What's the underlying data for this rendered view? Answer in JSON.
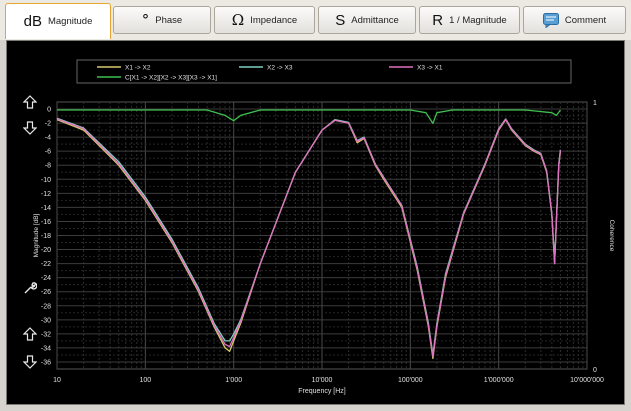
{
  "tabs": [
    {
      "symbol": "dB",
      "label": "Magnitude",
      "icon": "db-icon",
      "active": true
    },
    {
      "symbol": "°",
      "label": "Phase",
      "icon": "degree-icon",
      "active": false
    },
    {
      "symbol": "Ω",
      "label": "Impedance",
      "icon": "omega-icon",
      "active": false
    },
    {
      "symbol": "S",
      "label": "Admittance",
      "icon": "s-icon",
      "active": false
    },
    {
      "symbol": "R",
      "label": "1 / Magnitude",
      "icon": "r-icon",
      "active": false
    },
    {
      "symbol": "",
      "label": "Comment",
      "icon": "comment-icon",
      "active": false
    }
  ],
  "colors": {
    "background": "#000000",
    "grid": "#3a3a3a",
    "axis_text": "#e0e0e0",
    "accent": "#e8a531"
  },
  "chart_data": {
    "type": "line",
    "xlabel": "Frequency [Hz]",
    "ylabel": "Magnitude [dB]",
    "y2label": "Coherence",
    "xscale": "log",
    "xlim": [
      10,
      10000000
    ],
    "ylim": [
      -37,
      1
    ],
    "y2lim": [
      0,
      1
    ],
    "grid": true,
    "legend_position": "top",
    "x_tick_labels": [
      "10",
      "100",
      "1'000",
      "10'000",
      "100'000",
      "1'000'000",
      "10'000'000"
    ],
    "y_tick_labels": [
      "0",
      "-2",
      "-4",
      "-6",
      "-8",
      "-10",
      "-12",
      "-14",
      "-16",
      "-18",
      "-20",
      "-22",
      "-24",
      "-26",
      "-28",
      "-30",
      "-32",
      "-34",
      "-36"
    ],
    "y2_tick_labels": [
      "1",
      "0"
    ],
    "series": [
      {
        "name": "X1 -> X2",
        "color": "#d8c86a",
        "axis": "left",
        "x": [
          10,
          20,
          50,
          100,
          200,
          400,
          600,
          800,
          900,
          1000,
          1200,
          2000,
          5000,
          10000,
          14000,
          20000,
          25000,
          30000,
          40000,
          50000,
          80000,
          120000,
          160000,
          180000,
          200000,
          250000,
          400000,
          700000,
          1000000,
          1200000,
          1400000,
          2000000,
          2500000,
          3000000,
          3500000,
          4000000,
          4300000,
          4500000,
          4800000,
          5000000
        ],
        "y": [
          -1.5,
          -3,
          -8,
          -13,
          -19,
          -26,
          -31,
          -34,
          -34.5,
          -33,
          -30.5,
          -22,
          -9,
          -3,
          -1.6,
          -2,
          -4.8,
          -4.2,
          -8,
          -10,
          -14,
          -23,
          -31,
          -35.5,
          -31,
          -24,
          -15,
          -8,
          -3,
          -1.5,
          -3,
          -5.2,
          -6,
          -6.5,
          -9,
          -15,
          -22,
          -16,
          -8,
          -6
        ]
      },
      {
        "name": "X2 -> X3",
        "color": "#7fd0c0",
        "axis": "left",
        "x": [
          10,
          20,
          50,
          100,
          200,
          400,
          600,
          800,
          900,
          1000,
          1200,
          2000,
          5000,
          10000,
          14000,
          20000,
          25000,
          30000,
          40000,
          50000,
          80000,
          120000,
          160000,
          180000,
          200000,
          250000,
          400000,
          700000,
          1000000,
          1200000,
          1400000,
          2000000,
          2500000,
          3000000,
          3500000,
          4000000,
          4300000,
          4500000,
          4800000,
          5000000
        ],
        "y": [
          -1.3,
          -2.7,
          -7.5,
          -12.5,
          -18.5,
          -25.5,
          -30.5,
          -33,
          -33,
          -32,
          -30,
          -22,
          -9,
          -3,
          -1.5,
          -1.9,
          -4.5,
          -4,
          -7.8,
          -9.7,
          -13.7,
          -22.5,
          -30.5,
          -35,
          -30.5,
          -23.5,
          -14.8,
          -7.8,
          -2.8,
          -1.4,
          -2.8,
          -5,
          -5.8,
          -6.3,
          -8.8,
          -14.8,
          -21.7,
          -15.8,
          -7.8,
          -5.8
        ]
      },
      {
        "name": "X3 -> X1",
        "color": "#e070c0",
        "axis": "left",
        "x": [
          10,
          20,
          50,
          100,
          200,
          400,
          600,
          800,
          900,
          1000,
          1200,
          2000,
          5000,
          10000,
          14000,
          20000,
          25000,
          30000,
          40000,
          50000,
          80000,
          120000,
          160000,
          180000,
          200000,
          250000,
          400000,
          700000,
          1000000,
          1200000,
          1400000,
          2000000,
          2500000,
          3000000,
          3500000,
          4000000,
          4300000,
          4500000,
          4800000,
          5000000
        ],
        "y": [
          -1.4,
          -2.8,
          -7.8,
          -12.8,
          -18.8,
          -25.8,
          -30.8,
          -33.5,
          -33.8,
          -32.5,
          -30.2,
          -22,
          -9,
          -3,
          -1.6,
          -2,
          -4.6,
          -4.1,
          -7.9,
          -9.8,
          -13.8,
          -22.8,
          -30.8,
          -35.2,
          -30.8,
          -23.8,
          -14.9,
          -7.9,
          -2.9,
          -1.45,
          -2.9,
          -5.1,
          -5.9,
          -6.4,
          -8.9,
          -14.9,
          -22,
          -16,
          -7.9,
          -5.9
        ]
      },
      {
        "name": "C[X1 -> X2][X2 -> X3][X3 -> X1]",
        "color": "#3fbf4f",
        "axis": "right",
        "x": [
          10,
          100,
          500,
          800,
          1000,
          1200,
          2000,
          10000,
          100000,
          150000,
          180000,
          200000,
          300000,
          1000000,
          2000000,
          4000000,
          4500000,
          5000000
        ],
        "y": [
          0.97,
          0.97,
          0.97,
          0.95,
          0.93,
          0.95,
          0.97,
          0.97,
          0.97,
          0.96,
          0.92,
          0.96,
          0.97,
          0.97,
          0.97,
          0.96,
          0.95,
          0.97
        ]
      }
    ]
  }
}
